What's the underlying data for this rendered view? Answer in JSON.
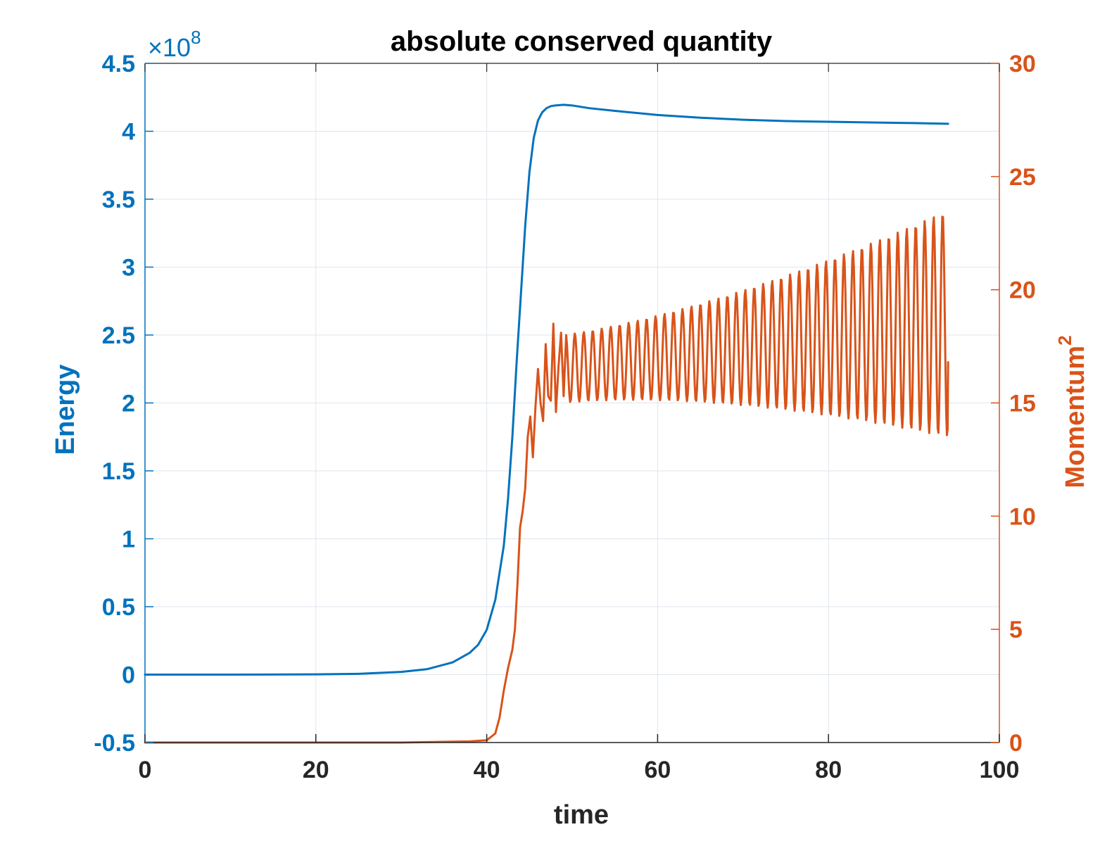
{
  "chart_data": {
    "type": "line",
    "title": "absolute conserved quantity",
    "xlabel": "time",
    "xlim": [
      0,
      100
    ],
    "x_ticks": [
      0,
      20,
      40,
      60,
      80,
      100
    ],
    "grid": true,
    "left_axis": {
      "label": "Energy",
      "color": "#0072BD",
      "ylim": [
        -0.5,
        4.5
      ],
      "ticks": [
        -0.5,
        0,
        0.5,
        1,
        1.5,
        2,
        2.5,
        3,
        3.5,
        4,
        4.5
      ],
      "multiplier_base": "×10",
      "multiplier_exponent": "8"
    },
    "right_axis": {
      "label_base": "Momentum",
      "label_exponent": "2",
      "color": "#D95319",
      "ylim": [
        0,
        30
      ],
      "ticks": [
        0,
        5,
        10,
        15,
        20,
        25,
        30
      ]
    },
    "series": [
      {
        "axis": "left",
        "color": "#0072BD",
        "x": [
          0,
          10,
          20,
          25,
          30,
          33,
          36,
          38,
          39,
          40,
          41,
          42,
          42.5,
          43,
          43.5,
          44,
          44.5,
          45,
          45.5,
          46,
          46.5,
          47,
          47.5,
          48,
          49,
          50,
          52,
          55,
          60,
          65,
          70,
          75,
          80,
          85,
          90,
          94
        ],
        "values": [
          0.0,
          0.0,
          0.002,
          0.006,
          0.02,
          0.04,
          0.09,
          0.16,
          0.22,
          0.33,
          0.55,
          0.95,
          1.3,
          1.75,
          2.3,
          2.8,
          3.3,
          3.7,
          3.95,
          4.08,
          4.14,
          4.17,
          4.185,
          4.19,
          4.195,
          4.19,
          4.17,
          4.15,
          4.12,
          4.1,
          4.085,
          4.075,
          4.07,
          4.065,
          4.06,
          4.055
        ]
      },
      {
        "axis": "right",
        "color": "#D95319",
        "x": [
          0,
          10,
          20,
          30,
          38,
          40,
          41,
          41.5,
          42,
          42.5,
          43,
          43.3,
          43.6,
          43.9,
          44.2,
          44.5,
          44.8,
          45.1,
          45.4,
          45.7,
          46.0,
          46.3,
          46.6,
          46.9,
          47.2,
          47.5,
          47.8,
          48.1,
          48.4,
          48.7,
          49.0,
          49.3
        ],
        "values": [
          0,
          0,
          0,
          0,
          0.05,
          0.1,
          0.4,
          1.1,
          2.3,
          3.3,
          4.1,
          5.0,
          7.0,
          9.5,
          10.2,
          11.2,
          13.5,
          14.4,
          12.6,
          14.8,
          16.5,
          15.0,
          14.2,
          17.6,
          15.3,
          15.1,
          18.5,
          14.6,
          16.6,
          18.1,
          15.3,
          18.0
        ]
      }
    ]
  }
}
